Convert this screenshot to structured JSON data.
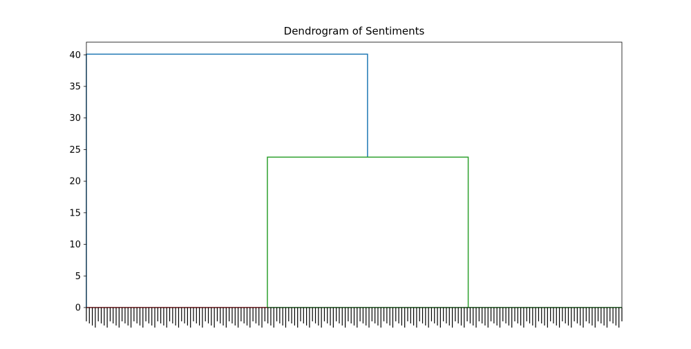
{
  "chart_data": {
    "type": "dendrogram",
    "title": "Dendrogram of Sentiments",
    "xlabel": "",
    "ylabel": "",
    "ylim": [
      0,
      42
    ],
    "y_ticks": [
      0,
      5,
      10,
      15,
      20,
      25,
      30,
      35,
      40
    ],
    "x_range": [
      0,
      100
    ],
    "grid": false,
    "leaf_tick_labels": "dense, illegible",
    "link_colors": {
      "root": "#1f77b4",
      "cluster_1": "#d62728",
      "cluster_2": "#2ca02c"
    },
    "leaf_groups": [
      {
        "name": "cluster_1",
        "x_start": 0.0,
        "x_end": 33.8,
        "color": "#d62728"
      },
      {
        "name": "cluster_2",
        "x_start": 33.8,
        "x_end": 100.0,
        "color": "#2ca02c"
      }
    ],
    "links": [
      {
        "x_left": 0.0,
        "x_right": 52.5,
        "y_left": 0.0,
        "y_right": 23.8,
        "height": 40.1,
        "color": "#1f77b4"
      },
      {
        "x_left": 33.8,
        "x_right": 71.3,
        "y_left": 0.0,
        "y_right": 0.0,
        "height": 23.8,
        "color": "#2ca02c"
      }
    ]
  }
}
